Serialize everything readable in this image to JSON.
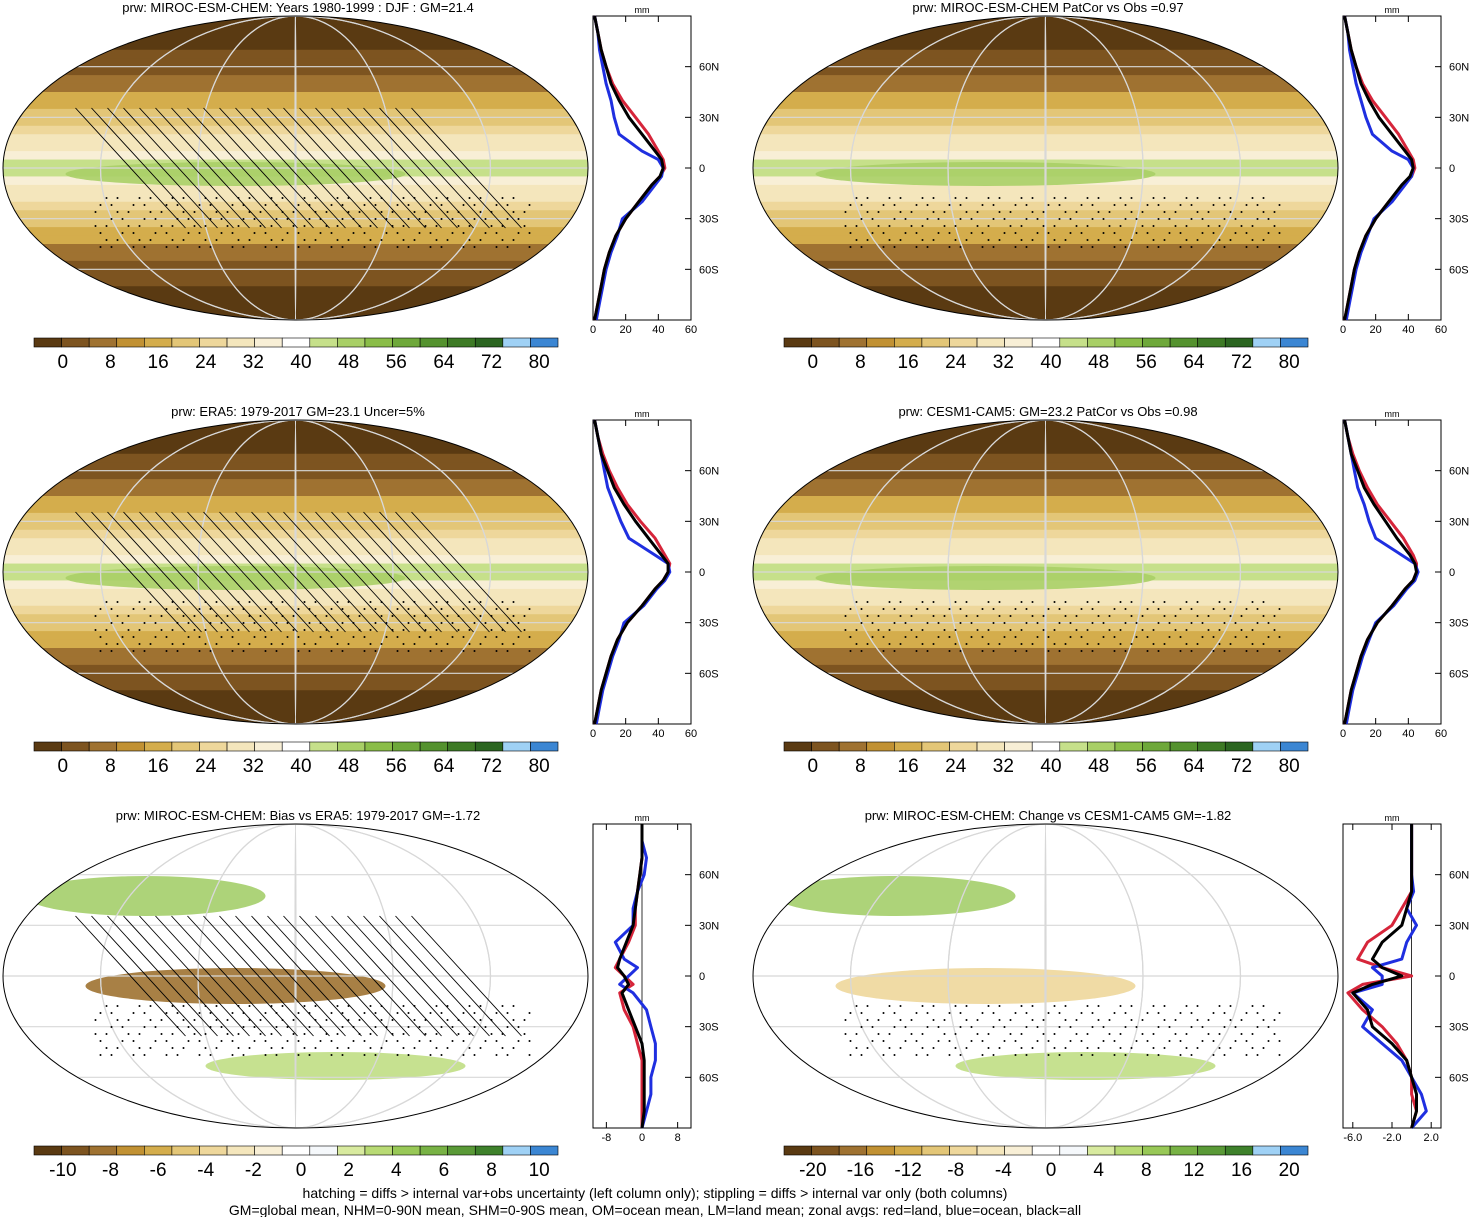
{
  "colors": {
    "prw_scale": [
      "#5a3a12",
      "#7d5420",
      "#9f7231",
      "#c19133",
      "#d4ad4c",
      "#e3c677",
      "#eed79b",
      "#f4e6bc",
      "#f8efd6",
      "#ffffff",
      "#c6e08a",
      "#a8cf66",
      "#8abd48",
      "#6ea83a",
      "#54922e",
      "#3d7a25",
      "#2b6520",
      "#9fd1f5",
      "#3b86d3"
    ],
    "diff_scale": [
      "#5a3a12",
      "#7d5420",
      "#9f7231",
      "#c19133",
      "#d4ad4c",
      "#e3c677",
      "#eed79b",
      "#f4e6bc",
      "#f8efd6",
      "#ffffff",
      "#f5f8fb",
      "#d8ea9f",
      "#b8da74",
      "#98c857",
      "#78b245",
      "#5a9a37",
      "#3e812b",
      "#9fd1f5",
      "#3b86d3"
    ],
    "land": "#d6253a",
    "ocean": "#1f2fe0",
    "all": "#000000"
  },
  "panels": [
    {
      "id": "miroc-djf",
      "title": "prw: MIROC-ESM-CHEM: Years 1980-1999 : DJF : GM=21.4",
      "scale": "prw",
      "cb_ticks": [
        "0",
        "8",
        "16",
        "24",
        "32",
        "40",
        "48",
        "56",
        "64",
        "72",
        "80"
      ],
      "zonal_ticks": [
        "0",
        "20",
        "40",
        "60"
      ],
      "zonal_xlim": [
        0,
        60
      ],
      "lat_ticks": [
        "60N",
        "30N",
        "0",
        "30S",
        "60S"
      ],
      "unit": "mm",
      "hatching": true,
      "stippling": true
    },
    {
      "id": "miroc-patcor",
      "title": "prw: MIROC-ESM-CHEM PatCor vs Obs =0.97",
      "scale": "prw",
      "cb_ticks": [
        "0",
        "8",
        "16",
        "24",
        "32",
        "40",
        "48",
        "56",
        "64",
        "72",
        "80"
      ],
      "zonal_ticks": [
        "0",
        "20",
        "40",
        "60"
      ],
      "zonal_xlim": [
        0,
        60
      ],
      "lat_ticks": [
        "60N",
        "30N",
        "0",
        "30S",
        "60S"
      ],
      "unit": "mm",
      "hatching": false,
      "stippling": true
    },
    {
      "id": "era5",
      "title": "prw: ERA5: 1979-2017 GM=23.1 Uncer=5%",
      "scale": "prw",
      "cb_ticks": [
        "0",
        "8",
        "16",
        "24",
        "32",
        "40",
        "48",
        "56",
        "64",
        "72",
        "80"
      ],
      "zonal_ticks": [
        "0",
        "20",
        "40",
        "60"
      ],
      "zonal_xlim": [
        0,
        60
      ],
      "lat_ticks": [
        "60N",
        "30N",
        "0",
        "30S",
        "60S"
      ],
      "unit": "mm",
      "hatching": true,
      "stippling": true
    },
    {
      "id": "cesm",
      "title": "prw: CESM1-CAM5: GM=23.2 PatCor vs Obs =0.98",
      "scale": "prw",
      "cb_ticks": [
        "0",
        "8",
        "16",
        "24",
        "32",
        "40",
        "48",
        "56",
        "64",
        "72",
        "80"
      ],
      "zonal_ticks": [
        "0",
        "20",
        "40",
        "60"
      ],
      "zonal_xlim": [
        0,
        60
      ],
      "lat_ticks": [
        "60N",
        "30N",
        "0",
        "30S",
        "60S"
      ],
      "unit": "mm",
      "hatching": false,
      "stippling": true
    },
    {
      "id": "bias",
      "title": "prw: MIROC-ESM-CHEM: Bias vs ERA5: 1979-2017 GM=-1.72",
      "scale": "diff",
      "cb_ticks": [
        "-10",
        "-8",
        "-6",
        "-4",
        "-2",
        "0",
        "2",
        "4",
        "6",
        "8",
        "10"
      ],
      "zonal_ticks": [
        "-8",
        "0",
        "8"
      ],
      "zonal_xlim": [
        -11,
        11
      ],
      "lat_ticks": [
        "60N",
        "30N",
        "0",
        "30S",
        "60S"
      ],
      "unit": "mm",
      "hatching": true,
      "stippling": true
    },
    {
      "id": "change",
      "title": "prw: MIROC-ESM-CHEM: Change vs CESM1-CAM5 GM=-1.82",
      "scale": "diff",
      "cb_ticks": [
        "-20",
        "-16",
        "-12",
        "-8",
        "-4",
        "0",
        "4",
        "8",
        "12",
        "16",
        "20"
      ],
      "zonal_ticks": [
        "-6.0",
        "-2.0",
        "2.0"
      ],
      "zonal_xlim": [
        -7,
        3
      ],
      "lat_ticks": [
        "60N",
        "30N",
        "0",
        "30S",
        "60S"
      ],
      "unit": "mm",
      "hatching": false,
      "stippling": true
    }
  ],
  "footnote": {
    "line1": "hatching = diffs > internal var+obs uncertainty (left column only); stippling = diffs > internal var only (both columns)",
    "line2": "GM=global mean, NHM=0-90N mean, SHM=0-90S mean, OM=ocean mean, LM=land mean; zonal avgs: red=land, blue=ocean, black=all"
  },
  "chart_data": [
    {
      "type": "line",
      "title": "prw: MIROC-ESM-CHEM: Years 1980-1999 : DJF : GM=21.4",
      "xlabel": "mm",
      "ylabel": "",
      "xlim": [
        0,
        60
      ],
      "ylim": [
        -90,
        90
      ],
      "series": [
        {
          "y": [
            90,
            80,
            70,
            60,
            50,
            40,
            30,
            20,
            10,
            5,
            0,
            -5,
            -10,
            -20,
            -30,
            -40,
            -50,
            -60,
            -70,
            -80,
            -90
          ],
          "x": [
            1,
            3,
            5,
            8,
            12,
            18,
            26,
            34,
            40,
            43,
            44,
            41,
            36,
            28,
            20,
            14,
            10,
            7,
            5,
            3,
            1
          ]
        },
        {
          "y": [
            90,
            80,
            70,
            60,
            50,
            40,
            30,
            20,
            10,
            5,
            0,
            -5,
            -10,
            -20,
            -30,
            -40,
            -50,
            -60,
            -70,
            -80,
            -90
          ],
          "x": [
            1,
            3,
            4,
            6,
            8,
            11,
            13,
            16,
            30,
            40,
            43,
            42,
            38,
            30,
            18,
            15,
            11,
            8,
            6,
            4,
            2
          ]
        },
        {
          "y": [
            90,
            80,
            70,
            60,
            50,
            40,
            30,
            20,
            10,
            5,
            0,
            -5,
            -10,
            -20,
            -30,
            -40,
            -50,
            -60,
            -70,
            -80,
            -90
          ],
          "x": [
            1,
            3,
            5,
            8,
            11,
            16,
            22,
            30,
            38,
            42,
            43,
            41,
            36,
            28,
            20,
            14,
            10,
            7,
            5,
            3,
            1
          ]
        }
      ]
    },
    {
      "type": "line",
      "title": "prw: MIROC-ESM-CHEM PatCor vs Obs =0.97",
      "xlabel": "mm",
      "ylabel": "",
      "xlim": [
        0,
        60
      ],
      "ylim": [
        -90,
        90
      ],
      "series": [
        {
          "y": [
            90,
            80,
            70,
            60,
            50,
            40,
            30,
            20,
            10,
            5,
            0,
            -5,
            -10,
            -20,
            -30,
            -40,
            -50,
            -60,
            -70,
            -80,
            -90
          ],
          "x": [
            1,
            3,
            5,
            8,
            12,
            18,
            26,
            34,
            40,
            43,
            44,
            42,
            37,
            28,
            20,
            14,
            10,
            7,
            5,
            3,
            1
          ]
        },
        {
          "y": [
            90,
            80,
            70,
            60,
            50,
            40,
            30,
            20,
            10,
            5,
            0,
            -5,
            -10,
            -20,
            -30,
            -40,
            -50,
            -60,
            -70,
            -80,
            -90
          ],
          "x": [
            1,
            3,
            4,
            6,
            8,
            11,
            14,
            18,
            30,
            40,
            43,
            42,
            38,
            30,
            19,
            15,
            11,
            8,
            6,
            4,
            2
          ]
        },
        {
          "y": [
            90,
            80,
            70,
            60,
            50,
            40,
            30,
            20,
            10,
            5,
            0,
            -5,
            -10,
            -20,
            -30,
            -40,
            -50,
            -60,
            -70,
            -80,
            -90
          ],
          "x": [
            1,
            3,
            5,
            8,
            11,
            16,
            22,
            30,
            38,
            42,
            43,
            41,
            36,
            28,
            20,
            14,
            10,
            7,
            5,
            3,
            1
          ]
        }
      ]
    },
    {
      "type": "line",
      "title": "prw: ERA5: 1979-2017 GM=23.1 Uncer=5%",
      "xlabel": "mm",
      "ylabel": "",
      "xlim": [
        0,
        60
      ],
      "ylim": [
        -90,
        90
      ],
      "series": [
        {
          "y": [
            90,
            80,
            70,
            60,
            50,
            40,
            30,
            20,
            10,
            5,
            0,
            -5,
            -10,
            -20,
            -30,
            -40,
            -50,
            -60,
            -70,
            -80,
            -90
          ],
          "x": [
            1,
            3,
            6,
            10,
            15,
            21,
            29,
            38,
            44,
            47,
            46,
            43,
            38,
            30,
            21,
            15,
            11,
            8,
            5,
            3,
            1
          ]
        },
        {
          "y": [
            90,
            80,
            70,
            60,
            50,
            40,
            30,
            20,
            10,
            5,
            0,
            -5,
            -10,
            -20,
            -30,
            -40,
            -50,
            -60,
            -70,
            -80,
            -90
          ],
          "x": [
            1,
            3,
            5,
            7,
            9,
            13,
            17,
            22,
            38,
            46,
            47,
            44,
            39,
            31,
            19,
            16,
            12,
            9,
            6,
            4,
            2
          ]
        },
        {
          "y": [
            90,
            80,
            70,
            60,
            50,
            40,
            30,
            20,
            10,
            5,
            0,
            -5,
            -10,
            -20,
            -30,
            -40,
            -50,
            -60,
            -70,
            -80,
            -90
          ],
          "x": [
            1,
            3,
            5,
            9,
            13,
            19,
            26,
            34,
            42,
            46,
            46,
            43,
            38,
            30,
            21,
            15,
            11,
            8,
            5,
            3,
            1
          ]
        }
      ]
    },
    {
      "type": "line",
      "title": "prw: CESM1-CAM5: GM=23.2 PatCor vs Obs =0.98",
      "xlabel": "mm",
      "ylabel": "",
      "xlim": [
        0,
        60
      ],
      "ylim": [
        -90,
        90
      ],
      "series": [
        {
          "y": [
            90,
            80,
            70,
            60,
            50,
            40,
            30,
            20,
            10,
            5,
            0,
            -5,
            -10,
            -20,
            -30,
            -40,
            -50,
            -60,
            -70,
            -80,
            -90
          ],
          "x": [
            1,
            3,
            6,
            10,
            15,
            21,
            29,
            37,
            43,
            45,
            45,
            43,
            38,
            30,
            21,
            15,
            11,
            8,
            5,
            3,
            1
          ]
        },
        {
          "y": [
            90,
            80,
            70,
            60,
            50,
            40,
            30,
            20,
            10,
            5,
            0,
            -5,
            -10,
            -20,
            -30,
            -40,
            -50,
            -60,
            -70,
            -80,
            -90
          ],
          "x": [
            1,
            3,
            5,
            7,
            9,
            13,
            16,
            20,
            36,
            44,
            46,
            44,
            39,
            31,
            20,
            16,
            12,
            9,
            6,
            4,
            2
          ]
        },
        {
          "y": [
            90,
            80,
            70,
            60,
            50,
            40,
            30,
            20,
            10,
            5,
            0,
            -5,
            -10,
            -20,
            -30,
            -40,
            -50,
            -60,
            -70,
            -80,
            -90
          ],
          "x": [
            1,
            3,
            5,
            9,
            13,
            19,
            26,
            33,
            41,
            44,
            45,
            43,
            38,
            30,
            21,
            15,
            11,
            8,
            5,
            3,
            1
          ]
        }
      ]
    },
    {
      "type": "line",
      "title": "prw: MIROC-ESM-CHEM: Bias vs ERA5: 1979-2017 GM=-1.72",
      "xlabel": "mm",
      "ylabel": "",
      "xlim": [
        -11,
        11
      ],
      "ylim": [
        -90,
        90
      ],
      "series": [
        {
          "y": [
            90,
            80,
            70,
            60,
            50,
            40,
            30,
            20,
            10,
            5,
            0,
            -5,
            -10,
            -20,
            -30,
            -40,
            -50,
            -60,
            -70,
            -80,
            -90
          ],
          "x": [
            0,
            0,
            0,
            -0.5,
            -1,
            -1.5,
            -1.5,
            -3,
            -5,
            -6,
            -4,
            -2,
            -5,
            -4,
            -2,
            -1,
            0,
            0,
            0,
            0,
            0
          ]
        },
        {
          "y": [
            90,
            80,
            70,
            60,
            50,
            40,
            30,
            20,
            10,
            5,
            0,
            -5,
            -10,
            -20,
            -30,
            -40,
            -50,
            -60,
            -70,
            -80,
            -90
          ],
          "x": [
            0,
            0,
            1,
            0.5,
            -1,
            -2,
            -2,
            -6,
            -4,
            -1,
            -3,
            -5,
            -2,
            1,
            2,
            3,
            3,
            2,
            2,
            1,
            0
          ]
        },
        {
          "y": [
            90,
            80,
            70,
            60,
            50,
            40,
            30,
            20,
            10,
            5,
            0,
            -5,
            -10,
            -20,
            -30,
            -40,
            -50,
            -60,
            -70,
            -80,
            -90
          ],
          "x": [
            0,
            0,
            0,
            -0.5,
            -1,
            -1.5,
            -2,
            -3.5,
            -5,
            -5.5,
            -4,
            -3,
            -4.5,
            -3,
            -1.5,
            0,
            0.5,
            0.5,
            0.5,
            0.5,
            0
          ]
        }
      ]
    },
    {
      "type": "line",
      "title": "prw: MIROC-ESM-CHEM: Change vs CESM1-CAM5 GM=-1.82",
      "xlabel": "mm",
      "ylabel": "",
      "xlim": [
        -7,
        3
      ],
      "ylim": [
        -90,
        90
      ],
      "series": [
        {
          "y": [
            90,
            80,
            70,
            60,
            50,
            40,
            30,
            20,
            10,
            5,
            0,
            -5,
            -10,
            -20,
            -30,
            -40,
            -50,
            -60,
            -70,
            -80,
            -90
          ],
          "x": [
            0,
            0,
            0,
            0,
            0,
            -1,
            -2,
            -4.5,
            -5.5,
            -3,
            0,
            -5,
            -6.5,
            -5,
            -3,
            -1.5,
            -0.5,
            0,
            0,
            0.5,
            0
          ]
        },
        {
          "y": [
            90,
            80,
            70,
            60,
            50,
            40,
            30,
            20,
            10,
            5,
            0,
            -5,
            -10,
            -20,
            -30,
            -40,
            -50,
            -60,
            -70,
            -80,
            -90
          ],
          "x": [
            0,
            0,
            0,
            0,
            0.2,
            -0.5,
            0.5,
            -0.5,
            -1,
            -4,
            -3,
            -3,
            -6,
            -4,
            -5,
            -3,
            -1,
            0,
            1,
            1.5,
            0
          ]
        },
        {
          "y": [
            90,
            80,
            70,
            60,
            50,
            40,
            30,
            20,
            10,
            5,
            0,
            -5,
            -10,
            -20,
            -30,
            -40,
            -50,
            -60,
            -70,
            -80,
            -90
          ],
          "x": [
            0,
            0,
            0,
            0,
            0,
            -0.5,
            -1,
            -3,
            -4,
            -3,
            -1,
            -4,
            -6,
            -4.5,
            -4,
            -2,
            -0.5,
            0,
            0.5,
            0.5,
            0
          ]
        }
      ]
    }
  ]
}
